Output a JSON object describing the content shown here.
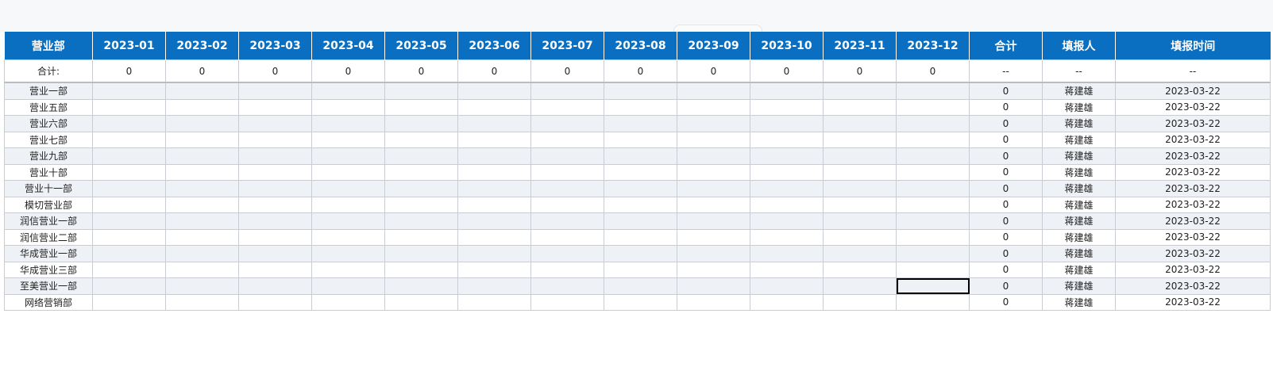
{
  "table": {
    "headers": [
      "营业部",
      "2023-01",
      "2023-02",
      "2023-03",
      "2023-04",
      "2023-05",
      "2023-06",
      "2023-07",
      "2023-08",
      "2023-09",
      "2023-10",
      "2023-11",
      "2023-12",
      "合计",
      "填报人",
      "填报时间"
    ],
    "summary": {
      "label": "合计:",
      "months": [
        0,
        0,
        0,
        0,
        0,
        0,
        0,
        0,
        0,
        0,
        0,
        0
      ],
      "total": "--",
      "person": "--",
      "date": "--"
    },
    "rows": [
      {
        "name": "营业一部",
        "total": 0,
        "person": "蒋建雄",
        "date": "2023-03-22"
      },
      {
        "name": "营业五部",
        "total": 0,
        "person": "蒋建雄",
        "date": "2023-03-22"
      },
      {
        "name": "营业六部",
        "total": 0,
        "person": "蒋建雄",
        "date": "2023-03-22"
      },
      {
        "name": "营业七部",
        "total": 0,
        "person": "蒋建雄",
        "date": "2023-03-22"
      },
      {
        "name": "营业九部",
        "total": 0,
        "person": "蒋建雄",
        "date": "2023-03-22"
      },
      {
        "name": "营业十部",
        "total": 0,
        "person": "蒋建雄",
        "date": "2023-03-22"
      },
      {
        "name": "营业十一部",
        "total": 0,
        "person": "蒋建雄",
        "date": "2023-03-22"
      },
      {
        "name": "模切营业部",
        "total": 0,
        "person": "蒋建雄",
        "date": "2023-03-22"
      },
      {
        "name": "润信营业一部",
        "total": 0,
        "person": "蒋建雄",
        "date": "2023-03-22"
      },
      {
        "name": "润信营业二部",
        "total": 0,
        "person": "蒋建雄",
        "date": "2023-03-22"
      },
      {
        "name": "华成营业一部",
        "total": 0,
        "person": "蒋建雄",
        "date": "2023-03-22"
      },
      {
        "name": "华成营业三部",
        "total": 0,
        "person": "蒋建雄",
        "date": "2023-03-22"
      },
      {
        "name": "至美营业一部",
        "total": 0,
        "person": "蒋建雄",
        "date": "2023-03-22"
      },
      {
        "name": "网络营销部",
        "total": 0,
        "person": "蒋建雄",
        "date": "2023-03-22"
      }
    ]
  }
}
